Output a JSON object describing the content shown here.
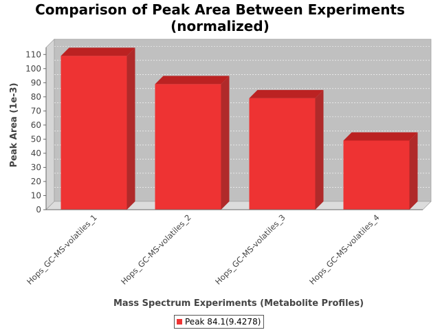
{
  "chart_data": {
    "type": "bar",
    "title_lines": [
      "Comparison of Peak Area Between Experiments",
      "(normalized)"
    ],
    "xlabel": "Mass Spectrum Experiments (Metabolite Profiles)",
    "ylabel": "Peak Area (1e-3)",
    "categories": [
      "Hops_GC-MS-volatiles_1",
      "Hops_GC-MS-volatiles_2",
      "Hops_GC-MS-volatiles_3",
      "Hops_GC-MS-volatiles_4"
    ],
    "series": [
      {
        "name": "Peak 84.1(9.4278)",
        "values": [
          109,
          89,
          79,
          49
        ]
      }
    ],
    "ylim": [
      0,
      115
    ],
    "yticks": [
      0,
      10,
      20,
      30,
      40,
      50,
      60,
      70,
      80,
      90,
      100,
      110
    ],
    "grid": true,
    "legend_position": "bottom",
    "colors": {
      "bar_front": "#ee3333",
      "bar_top": "#bb2222",
      "bar_side": "#b02a2a",
      "plot_back": "#c0c0c0",
      "plot_floor": "#dcdcdc",
      "plot_wall": "#d6d6d6"
    }
  }
}
